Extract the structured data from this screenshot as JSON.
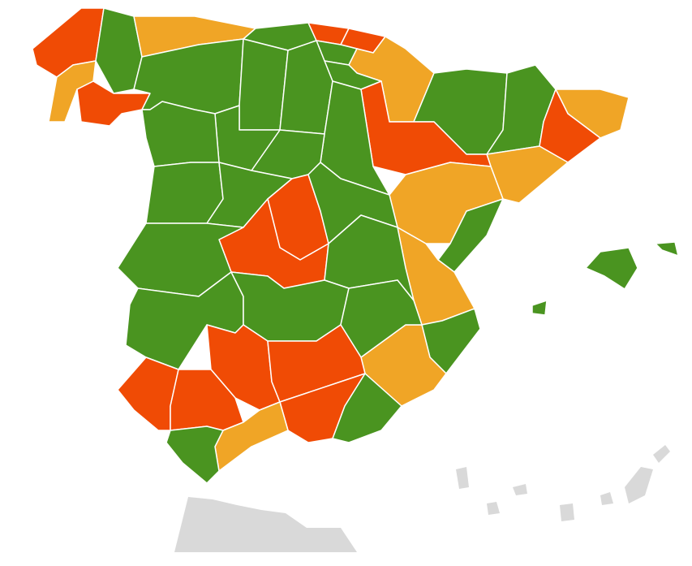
{
  "map": {
    "region_colors": [
      "#f04b05",
      "#4a9420",
      "#f0a526",
      "#f04b05",
      "#f0a526",
      "#4a9420",
      "#f04b05",
      "#f04b05",
      "#4a9420",
      "#f0a526",
      "#4a9420",
      "#4a9420",
      "#4a9420",
      "#4a9420",
      "#4a9420",
      "#4a9420",
      "#f0a526",
      "#f04b05",
      "#f0a526",
      "#f04b05",
      "#f0a526",
      "#4a9420",
      "#f0a526",
      "#4a9420",
      "#f0a526",
      "#4a9420",
      "#4a9420",
      "#4a9420",
      "#4a9420",
      "#4a9420",
      "#4a9420",
      "#f04b05",
      "#4a9420",
      "#f04b05",
      "#4a9420",
      "#4a9420",
      "#4a9420",
      "#4a9420",
      "#4a9420",
      "#f04b05",
      "#f04b05",
      "#f04b05",
      "#4a9420",
      "#f04b05",
      "#f04b05",
      "#f0a526",
      "#4a9420",
      "#4a9420",
      "#4a9420",
      "#4a9420"
    ],
    "outside_color": "#d9d9d9"
  }
}
